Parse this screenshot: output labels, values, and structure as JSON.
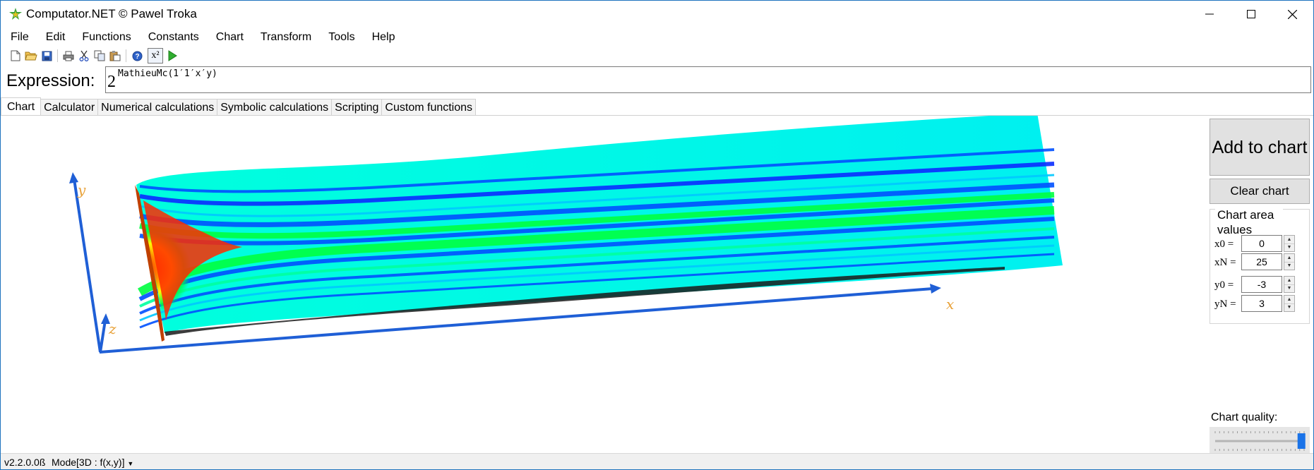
{
  "window": {
    "title": "Computator.NET © Pawel Troka",
    "icon": "computator-app-icon",
    "controls": [
      "minimize-icon",
      "maximize-icon",
      "close-icon"
    ]
  },
  "menu": {
    "items": [
      {
        "label": "File"
      },
      {
        "label": "Edit"
      },
      {
        "label": "Functions"
      },
      {
        "label": "Constants"
      },
      {
        "label": "Chart"
      },
      {
        "label": "Transform"
      },
      {
        "label": "Tools"
      },
      {
        "label": "Help"
      }
    ]
  },
  "toolbar": {
    "icons": [
      "new-file-icon",
      "open-folder-icon",
      "save-icon",
      "print-icon",
      "cut-icon",
      "copy-icon",
      "paste-icon",
      "help-icon",
      "exponent-icon",
      "run-icon"
    ],
    "exponent_label": "x²"
  },
  "expression": {
    "label": "Expression:",
    "base": "2",
    "exponent": "MathieuMc(1′1′x′y)"
  },
  "tabs": [
    {
      "label": "Chart",
      "active": true
    },
    {
      "label": "Calculator"
    },
    {
      "label": "Numerical calculations"
    },
    {
      "label": "Symbolic calculations"
    },
    {
      "label": "Scripting"
    },
    {
      "label": "Custom functions"
    }
  ],
  "chart": {
    "axis_x_label": "x",
    "axis_y_label": "y",
    "axis_z_label": "z",
    "axis_color": "#1f5fd6",
    "axis_label_color": "#e8a23a",
    "colormap": [
      "#ff1a00",
      "#ff8c00",
      "#ffff00",
      "#00ff40",
      "#00ffff",
      "#0050ff"
    ]
  },
  "side_panel": {
    "add_label": "Add to chart",
    "clear_label": "Clear chart",
    "group_title": "Chart area values",
    "fields": [
      {
        "label": "x0 =",
        "value": "0"
      },
      {
        "label": "xN =",
        "value": "25"
      },
      {
        "label": "y0 =",
        "value": "-3"
      },
      {
        "label": "yN =",
        "value": "3"
      }
    ],
    "quality_label": "Chart quality:",
    "quality_level": 0.97
  },
  "status": {
    "version": "v2.2.0.0ß",
    "mode": "Mode[3D : f(x,y)]"
  }
}
